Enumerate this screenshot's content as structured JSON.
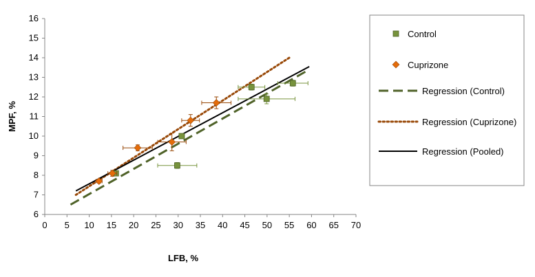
{
  "chart_data": {
    "type": "scatter",
    "xlabel": "LFB, %",
    "ylabel": "MPF, %",
    "xlim": [
      0,
      70
    ],
    "ylim": [
      6,
      16
    ],
    "xticks": [
      "0",
      "5",
      "10",
      "15",
      "20",
      "25",
      "30",
      "35",
      "40",
      "45",
      "50",
      "55",
      "60",
      "65",
      "70"
    ],
    "yticks": [
      "6",
      "7",
      "8",
      "9",
      "10",
      "11",
      "12",
      "13",
      "14",
      "15",
      "16"
    ],
    "grid": false,
    "legend_position": "right",
    "series": [
      {
        "name": "Control",
        "kind": "points",
        "marker": "square",
        "color": "#77933c",
        "points": [
          {
            "x": 16.0,
            "y": 8.1,
            "xerr": 0.5,
            "yerr": 0.1
          },
          {
            "x": 29.8,
            "y": 8.5,
            "xerr": 4.4,
            "yerr": 0.15
          },
          {
            "x": 30.8,
            "y": 10.0,
            "xerr": 0.6,
            "yerr": 0.1
          },
          {
            "x": 46.5,
            "y": 12.5,
            "xerr": 3.0,
            "yerr": 0.15
          },
          {
            "x": 49.9,
            "y": 11.9,
            "xerr": 6.4,
            "yerr": 0.25
          },
          {
            "x": 55.8,
            "y": 12.7,
            "xerr": 3.4,
            "yerr": 0.15
          }
        ]
      },
      {
        "name": "Cuprizone",
        "kind": "points",
        "marker": "diamond",
        "color": "#e46c0a",
        "points": [
          {
            "x": 12.2,
            "y": 7.7,
            "xerr": 0.7,
            "yerr": 0.1
          },
          {
            "x": 15.2,
            "y": 8.1,
            "xerr": 1.0,
            "yerr": 0.15
          },
          {
            "x": 20.9,
            "y": 9.4,
            "xerr": 3.3,
            "yerr": 0.15
          },
          {
            "x": 28.6,
            "y": 9.7,
            "xerr": 3.2,
            "yerr": 0.45
          },
          {
            "x": 32.8,
            "y": 10.8,
            "xerr": 2.0,
            "yerr": 0.3
          },
          {
            "x": 38.6,
            "y": 11.7,
            "xerr": 3.3,
            "yerr": 0.3
          }
        ]
      },
      {
        "name": "Regression (Control)",
        "kind": "line",
        "dash": "dashed",
        "color": "#4f6228",
        "x": [
          5.8,
          59.5
        ],
        "y": [
          6.5,
          13.4
        ]
      },
      {
        "name": "Regression (Cuprizone)",
        "kind": "line",
        "dash": "dotted",
        "color": "#984807",
        "x": [
          7.0,
          55.0
        ],
        "y": [
          7.0,
          14.0
        ]
      },
      {
        "name": "Regression (Pooled)",
        "kind": "line",
        "dash": "solid",
        "color": "#000000",
        "x": [
          7.0,
          59.5
        ],
        "y": [
          7.2,
          13.55
        ]
      }
    ]
  }
}
